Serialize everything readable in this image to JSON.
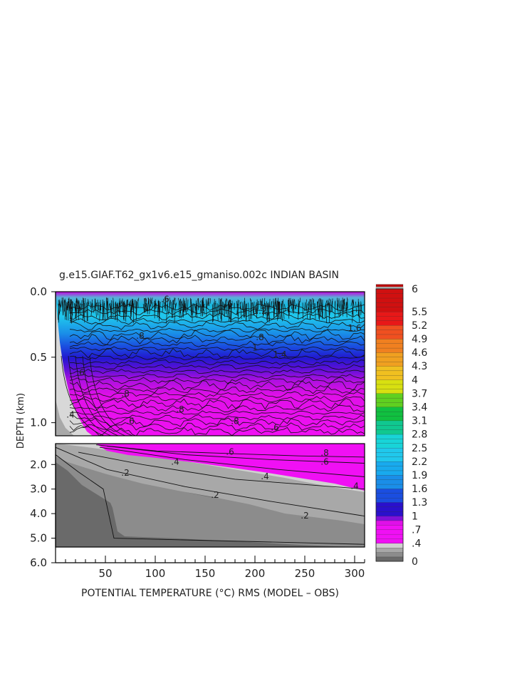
{
  "chart_data": {
    "type": "heatmap",
    "title": "g.e15.GIAF.T62_gx1v6.e15_gmaniso.002c INDIAN BASIN",
    "xlabel": "POTENTIAL TEMPERATURE (°C) RMS (MODEL – OBS)",
    "ylabel": "DEPTH (km)",
    "xlim": [
      0,
      310
    ],
    "x_ticks": [
      50,
      100,
      150,
      200,
      250,
      300
    ],
    "x_tick_labels": [
      "50",
      "100",
      "150",
      "200",
      "250",
      "300"
    ],
    "upper_panel": {
      "ylim": [
        0.0,
        1.1
      ],
      "y_ticks": [
        0.0,
        0.5,
        1.0
      ],
      "y_tick_labels": [
        "0.0",
        "0.5",
        "1.0"
      ]
    },
    "lower_panel": {
      "ylim": [
        1.15,
        6.0
      ],
      "y_ticks": [
        2.0,
        3.0,
        4.0,
        5.0,
        6.0
      ],
      "y_tick_labels": [
        "2.0",
        "3.0",
        "4.0",
        "5.0",
        "6.0"
      ]
    },
    "colorbar": {
      "range": [
        0,
        6
      ],
      "labels": [
        "6",
        "5.5",
        "5.2",
        "4.9",
        "4.6",
        "4.3",
        "4",
        "3.7",
        "3.4",
        "3.1",
        "2.8",
        "2.5",
        "2.2",
        "1.9",
        "1.6",
        "1.3",
        "1",
        ".7",
        ".4",
        "0"
      ],
      "label_values": [
        6,
        5.5,
        5.2,
        4.9,
        4.6,
        4.3,
        4.0,
        3.7,
        3.4,
        3.1,
        2.8,
        2.5,
        2.2,
        1.9,
        1.6,
        1.3,
        1.0,
        0.7,
        0.4,
        0
      ]
    },
    "contour_labels": {
      "upper": [
        {
          "text": ".6",
          "x": 110,
          "y": 0.08
        },
        {
          "text": "1.2",
          "x": 205,
          "y": 0.17
        },
        {
          "text": "1.6",
          "x": 300,
          "y": 0.3
        },
        {
          "text": ".8",
          "x": 85,
          "y": 0.36
        },
        {
          "text": ".8",
          "x": 205,
          "y": 0.37
        },
        {
          "text": "1",
          "x": 200,
          "y": 0.45
        },
        {
          "text": "1.4",
          "x": 225,
          "y": 0.5
        },
        {
          "text": ".6",
          "x": 25,
          "y": 0.64
        },
        {
          "text": ".8",
          "x": 70,
          "y": 0.8
        },
        {
          "text": ".8",
          "x": 125,
          "y": 0.92
        },
        {
          "text": ".6",
          "x": 75,
          "y": 1.01
        },
        {
          "text": ".8",
          "x": 180,
          "y": 1.01
        },
        {
          "text": ".6",
          "x": 220,
          "y": 1.06
        },
        {
          "text": ".4",
          "x": 15,
          "y": 0.96
        }
      ],
      "lower": [
        {
          "text": ".6",
          "x": 175,
          "y": 1.6
        },
        {
          "text": ".8",
          "x": 270,
          "y": 1.65
        },
        {
          "text": ".4",
          "x": 120,
          "y": 2.0
        },
        {
          "text": ".6",
          "x": 270,
          "y": 2.0
        },
        {
          "text": ".2",
          "x": 70,
          "y": 2.45
        },
        {
          "text": ".4",
          "x": 210,
          "y": 2.6
        },
        {
          "text": ".4",
          "x": 300,
          "y": 3.0
        },
        {
          "text": ".2",
          "x": 160,
          "y": 3.35
        },
        {
          "text": ".2",
          "x": 250,
          "y": 4.2
        }
      ]
    }
  }
}
